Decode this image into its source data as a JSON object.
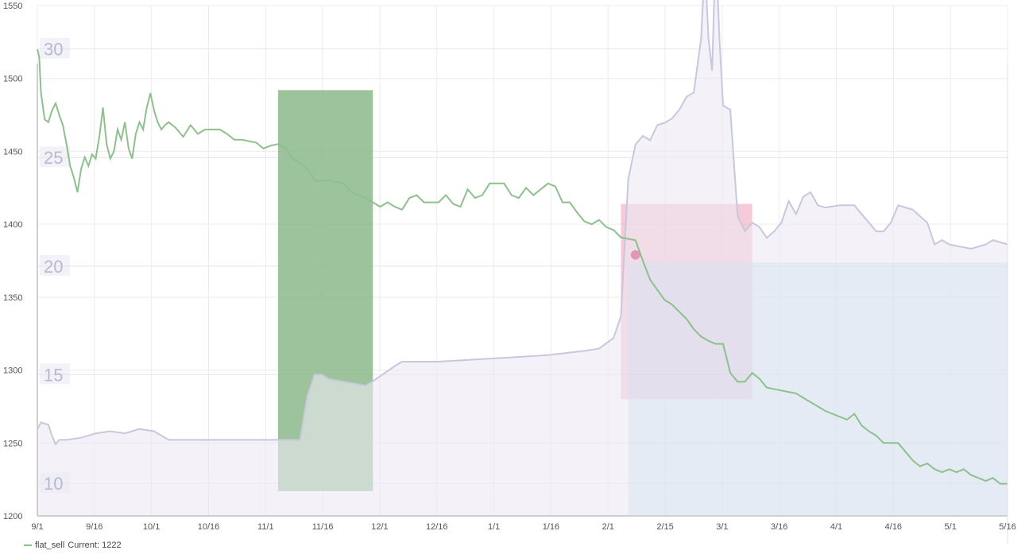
{
  "colors": {
    "sell_line": "#8dc08d",
    "secondary_line": "#c8c8dc",
    "secondary_fill": "#eceaf4",
    "green_box": "#8bb98b",
    "pink_box": "#f0a6be",
    "blue_box": "#aad8ec"
  },
  "legend": {
    "series_name": "flat_sell",
    "current_label": "Current: 1222"
  },
  "chart_data": {
    "type": "line",
    "title": "",
    "x_ticks": [
      "9/1",
      "9/16",
      "10/1",
      "10/16",
      "11/1",
      "11/16",
      "12/1",
      "12/16",
      "1/1",
      "1/16",
      "2/1",
      "2/15",
      "3/1",
      "3/16",
      "4/1",
      "4/16",
      "5/1",
      "5/16"
    ],
    "y_ticks": [
      1200,
      1250,
      1300,
      1350,
      1400,
      1450,
      1500,
      1550
    ],
    "ylim": [
      1200,
      1550
    ],
    "y2_ticks": [
      10,
      15,
      20,
      25,
      30
    ],
    "y2lim": [
      8.5,
      32
    ],
    "series": [
      {
        "name": "flat_sell",
        "axis": "left",
        "points": [
          [
            0,
            1520
          ],
          [
            0.5,
            1515
          ],
          [
            1,
            1490
          ],
          [
            2,
            1472
          ],
          [
            3,
            1470
          ],
          [
            4,
            1478
          ],
          [
            5,
            1483
          ],
          [
            6,
            1475
          ],
          [
            7,
            1468
          ],
          [
            8,
            1455
          ],
          [
            9,
            1440
          ],
          [
            10,
            1432
          ],
          [
            11,
            1422
          ],
          [
            12,
            1438
          ],
          [
            13,
            1446
          ],
          [
            14,
            1440
          ],
          [
            15,
            1448
          ],
          [
            16,
            1445
          ],
          [
            17,
            1460
          ],
          [
            18,
            1480
          ],
          [
            19,
            1455
          ],
          [
            20,
            1445
          ],
          [
            21,
            1450
          ],
          [
            22,
            1465
          ],
          [
            23,
            1458
          ],
          [
            24,
            1470
          ],
          [
            25,
            1452
          ],
          [
            26,
            1445
          ],
          [
            27,
            1462
          ],
          [
            28,
            1470
          ],
          [
            29,
            1465
          ],
          [
            30,
            1480
          ],
          [
            31,
            1490
          ],
          [
            32,
            1478
          ],
          [
            33,
            1470
          ],
          [
            34,
            1465
          ],
          [
            35,
            1468
          ],
          [
            36,
            1470
          ],
          [
            38,
            1466
          ],
          [
            40,
            1460
          ],
          [
            42,
            1468
          ],
          [
            44,
            1462
          ],
          [
            46,
            1465
          ],
          [
            50,
            1465
          ],
          [
            52,
            1462
          ],
          [
            54,
            1458
          ],
          [
            56,
            1458
          ],
          [
            60,
            1456
          ],
          [
            62,
            1452
          ],
          [
            64,
            1454
          ],
          [
            66,
            1455
          ],
          [
            68,
            1452
          ],
          [
            70,
            1445
          ],
          [
            72,
            1442
          ],
          [
            74,
            1438
          ],
          [
            76,
            1430
          ],
          [
            80,
            1430
          ],
          [
            84,
            1428
          ],
          [
            86,
            1422
          ],
          [
            88,
            1420
          ],
          [
            90,
            1418
          ],
          [
            92,
            1415
          ],
          [
            94,
            1412
          ],
          [
            96,
            1415
          ],
          [
            98,
            1412
          ],
          [
            100,
            1410
          ],
          [
            102,
            1418
          ],
          [
            104,
            1420
          ],
          [
            106,
            1415
          ],
          [
            110,
            1415
          ],
          [
            112,
            1420
          ],
          [
            114,
            1414
          ],
          [
            116,
            1412
          ],
          [
            118,
            1424
          ],
          [
            120,
            1418
          ],
          [
            122,
            1420
          ],
          [
            124,
            1428
          ],
          [
            128,
            1428
          ],
          [
            130,
            1420
          ],
          [
            132,
            1418
          ],
          [
            134,
            1425
          ],
          [
            136,
            1420
          ],
          [
            140,
            1428
          ],
          [
            142,
            1426
          ],
          [
            144,
            1415
          ],
          [
            146,
            1415
          ],
          [
            148,
            1408
          ],
          [
            150,
            1402
          ],
          [
            152,
            1400
          ],
          [
            154,
            1403
          ],
          [
            156,
            1398
          ],
          [
            158,
            1396
          ],
          [
            160,
            1391
          ],
          [
            162,
            1390
          ],
          [
            164,
            1389
          ],
          [
            166,
            1375
          ],
          [
            168,
            1362
          ],
          [
            170,
            1355
          ],
          [
            172,
            1348
          ],
          [
            174,
            1345
          ],
          [
            176,
            1340
          ],
          [
            178,
            1335
          ],
          [
            180,
            1328
          ],
          [
            182,
            1323
          ],
          [
            184,
            1320
          ],
          [
            186,
            1318
          ],
          [
            188,
            1318
          ],
          [
            190,
            1298
          ],
          [
            192,
            1292
          ],
          [
            194,
            1292
          ],
          [
            196,
            1298
          ],
          [
            198,
            1294
          ],
          [
            200,
            1288
          ],
          [
            204,
            1286
          ],
          [
            208,
            1284
          ],
          [
            212,
            1278
          ],
          [
            216,
            1272
          ],
          [
            220,
            1268
          ],
          [
            222,
            1266
          ],
          [
            224,
            1270
          ],
          [
            226,
            1262
          ],
          [
            228,
            1258
          ],
          [
            230,
            1255
          ],
          [
            232,
            1250
          ],
          [
            236,
            1250
          ],
          [
            238,
            1244
          ],
          [
            240,
            1238
          ],
          [
            242,
            1234
          ],
          [
            244,
            1236
          ],
          [
            246,
            1232
          ],
          [
            248,
            1230
          ],
          [
            250,
            1232
          ],
          [
            252,
            1230
          ],
          [
            254,
            1232
          ],
          [
            256,
            1228
          ],
          [
            258,
            1226
          ],
          [
            260,
            1224
          ],
          [
            262,
            1226
          ],
          [
            264,
            1222
          ],
          [
            266,
            1222
          ]
        ]
      },
      {
        "name": "",
        "axis": "right",
        "points": [
          [
            0,
            12.5
          ],
          [
            1,
            12.8
          ],
          [
            3,
            12.7
          ],
          [
            4,
            12.2
          ],
          [
            5,
            11.8
          ],
          [
            6,
            12.0
          ],
          [
            8,
            12.0
          ],
          [
            12,
            12.1
          ],
          [
            16,
            12.3
          ],
          [
            20,
            12.4
          ],
          [
            24,
            12.3
          ],
          [
            28,
            12.5
          ],
          [
            32,
            12.4
          ],
          [
            36,
            12.0
          ],
          [
            40,
            12.0
          ],
          [
            50,
            12.0
          ],
          [
            60,
            12.0
          ],
          [
            68,
            12.0
          ],
          [
            72,
            12.0
          ],
          [
            74,
            14.0
          ],
          [
            76,
            15.0
          ],
          [
            78,
            15.0
          ],
          [
            80,
            14.8
          ],
          [
            90,
            14.5
          ],
          [
            92,
            14.7
          ],
          [
            98,
            15.4
          ],
          [
            100,
            15.6
          ],
          [
            110,
            15.6
          ],
          [
            120,
            15.7
          ],
          [
            130,
            15.8
          ],
          [
            140,
            15.9
          ],
          [
            150,
            16.1
          ],
          [
            154,
            16.2
          ],
          [
            158,
            16.7
          ],
          [
            160,
            17.7
          ],
          [
            162,
            24.0
          ],
          [
            164,
            25.6
          ],
          [
            166,
            26.0
          ],
          [
            168,
            25.8
          ],
          [
            170,
            26.5
          ],
          [
            172,
            26.6
          ],
          [
            174,
            26.8
          ],
          [
            176,
            27.2
          ],
          [
            178,
            27.8
          ],
          [
            180,
            28.0
          ],
          [
            182,
            30.5
          ],
          [
            183,
            34.0
          ],
          [
            184,
            30.5
          ],
          [
            185,
            29.0
          ],
          [
            186,
            34.8
          ],
          [
            187,
            30.5
          ],
          [
            188,
            27.4
          ],
          [
            190,
            27.2
          ],
          [
            192,
            22.3
          ],
          [
            194,
            21.6
          ],
          [
            196,
            22.0
          ],
          [
            198,
            21.8
          ],
          [
            200,
            21.3
          ],
          [
            202,
            21.6
          ],
          [
            204,
            22.0
          ],
          [
            206,
            23.0
          ],
          [
            208,
            22.4
          ],
          [
            210,
            23.2
          ],
          [
            212,
            23.4
          ],
          [
            214,
            22.8
          ],
          [
            216,
            22.7
          ],
          [
            220,
            22.8
          ],
          [
            224,
            22.8
          ],
          [
            226,
            22.4
          ],
          [
            228,
            22.0
          ],
          [
            230,
            21.6
          ],
          [
            232,
            21.6
          ],
          [
            234,
            22.0
          ],
          [
            236,
            22.8
          ],
          [
            240,
            22.6
          ],
          [
            242,
            22.3
          ],
          [
            244,
            22.0
          ],
          [
            246,
            21.0
          ],
          [
            248,
            21.2
          ],
          [
            250,
            21.0
          ],
          [
            256,
            20.8
          ],
          [
            260,
            21.0
          ],
          [
            262,
            21.2
          ],
          [
            266,
            21.0
          ]
        ]
      }
    ],
    "highlights": [
      {
        "color": "green",
        "x_start": 66,
        "x_end": 92,
        "y_start": 1217,
        "y_end": 1492
      },
      {
        "color": "pink",
        "x_start": 160,
        "x_end": 196,
        "y_start": 1280,
        "y_end": 1414
      },
      {
        "color": "blue",
        "x_start": 162,
        "x_end": 266,
        "y_start": 1200,
        "y_end": 1374
      }
    ],
    "marker": {
      "x": 164,
      "y": 1379
    }
  }
}
